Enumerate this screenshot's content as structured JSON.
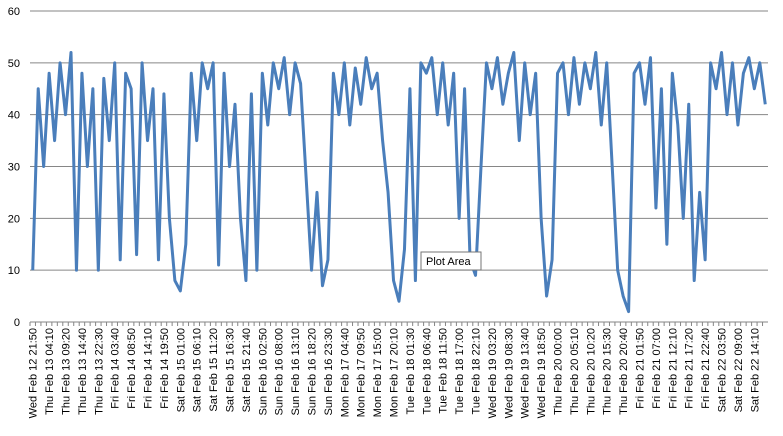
{
  "chart_data": {
    "type": "line",
    "color": "#4a7ebb",
    "grid": true,
    "tooltip": "Plot Area",
    "ylim": [
      0,
      60
    ],
    "yticks": [
      0,
      10,
      20,
      30,
      40,
      50,
      60
    ],
    "categories": [
      "Wed Feb 12 21:50",
      null,
      null,
      "Thu Feb 13 04:10",
      null,
      null,
      "Thu Feb 13 09:20",
      null,
      null,
      "Thu Feb 13 14:40",
      null,
      null,
      "Thu Feb 13 22:30",
      null,
      null,
      "Fri Feb 14 03:40",
      null,
      null,
      "Fri Feb 14 08:50",
      null,
      null,
      "Fri Feb 14 14:10",
      null,
      null,
      "Fri Feb 14 19:50",
      null,
      null,
      "Sat Feb 15 01:00",
      null,
      null,
      "Sat Feb 15 06:10",
      null,
      null,
      "Sat Feb 15 11:20",
      null,
      null,
      "Sat Feb 15 16:30",
      null,
      null,
      "Sat Feb 15 21:40",
      null,
      null,
      "Sun Feb 16 02:50",
      null,
      null,
      "Sun Feb 16 08:00",
      null,
      null,
      "Sun Feb 16 13:10",
      null,
      null,
      "Sun Feb 16 18:20",
      null,
      null,
      "Sun Feb 16 23:30",
      null,
      null,
      "Mon Feb 17 04:40",
      null,
      null,
      "Mon Feb 17 09:50",
      null,
      null,
      "Mon Feb 17 15:00",
      null,
      null,
      "Mon Feb 17 20:10",
      null,
      null,
      "Tue Feb 18 01:30",
      null,
      null,
      "Tue Feb 18 06:40",
      null,
      null,
      "Tue Feb 18 11:50",
      null,
      null,
      "Tue Feb 18 17:00",
      null,
      null,
      "Tue Feb 18 22:10",
      null,
      null,
      "Wed Feb 19 03:20",
      null,
      null,
      "Wed Feb 19 08:30",
      null,
      null,
      "Wed Feb 19 13:40",
      null,
      null,
      "Wed Feb 19 18:50",
      null,
      null,
      "Thu Feb 20 00:00",
      null,
      null,
      "Thu Feb 20 05:10",
      null,
      null,
      "Thu Feb 20 10:20",
      null,
      null,
      "Thu Feb 20 15:30",
      null,
      null,
      "Thu Feb 20 20:40",
      null,
      null,
      "Fri Feb 21 01:50",
      null,
      null,
      "Fri Feb 21 07:00",
      null,
      null,
      "Fri Feb 21 12:10",
      null,
      null,
      "Fri Feb 21 17:20",
      null,
      null,
      "Fri Feb 21 22:40",
      null,
      null,
      "Sat Feb 22 03:50",
      null,
      null,
      "Sat Feb 22 09:00",
      null,
      null,
      "Sat Feb 22 14:10",
      null,
      null
    ],
    "values": [
      10,
      45,
      30,
      48,
      35,
      50,
      40,
      52,
      10,
      48,
      30,
      45,
      10,
      47,
      35,
      50,
      12,
      48,
      45,
      13,
      50,
      35,
      45,
      12,
      44,
      20,
      8,
      6,
      15,
      48,
      35,
      50,
      45,
      50,
      11,
      48,
      30,
      42,
      20,
      8,
      44,
      10,
      48,
      38,
      50,
      45,
      51,
      40,
      50,
      46,
      28,
      10,
      25,
      7,
      12,
      48,
      40,
      50,
      38,
      49,
      42,
      51,
      45,
      48,
      35,
      25,
      8,
      4,
      14,
      45,
      8,
      50,
      48,
      51,
      40,
      50,
      38,
      48,
      20,
      45,
      12,
      9,
      30,
      50,
      45,
      51,
      42,
      48,
      52,
      35,
      50,
      40,
      48,
      20,
      5,
      12,
      48,
      50,
      40,
      51,
      42,
      50,
      45,
      52,
      38,
      50,
      30,
      10,
      5,
      2,
      48,
      50,
      42,
      51,
      22,
      45,
      15,
      48,
      38,
      20,
      42,
      8,
      25,
      12,
      50,
      45,
      52,
      40,
      50,
      38,
      48,
      51,
      45,
      50,
      42
    ]
  }
}
